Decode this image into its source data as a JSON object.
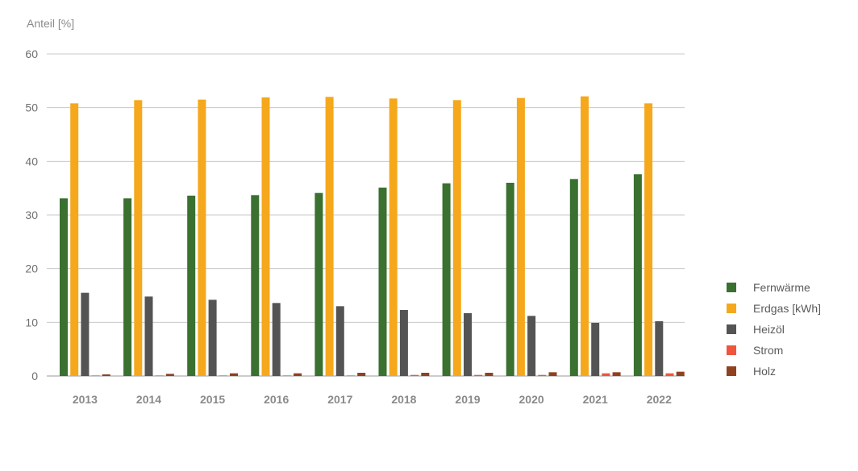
{
  "chart_data": {
    "type": "bar",
    "ylabel": "Anteil [%]",
    "ylim": [
      0,
      60
    ],
    "yticks": [
      0,
      10,
      20,
      30,
      40,
      50,
      60
    ],
    "grid": true,
    "legend_placement": "right",
    "categories": [
      "2013",
      "2014",
      "2015",
      "2016",
      "2017",
      "2018",
      "2019",
      "2020",
      "2021",
      "2022"
    ],
    "series": [
      {
        "name": "Fernwärme",
        "color": "#3a7030",
        "values": [
          33.1,
          33.1,
          33.6,
          33.7,
          34.1,
          35.1,
          35.9,
          36.0,
          36.7,
          37.6
        ]
      },
      {
        "name": "Erdgas [kWh]",
        "color": "#f5a81c",
        "values": [
          50.8,
          51.4,
          51.5,
          51.9,
          52.0,
          51.7,
          51.4,
          51.8,
          52.1,
          50.8
        ]
      },
      {
        "name": "Heizöl",
        "color": "#545454",
        "values": [
          15.5,
          14.8,
          14.2,
          13.6,
          13.0,
          12.3,
          11.7,
          11.2,
          9.9,
          10.2
        ]
      },
      {
        "name": "Strom",
        "color": "#ef553b",
        "values": [
          0.1,
          0.1,
          0.1,
          0.1,
          0.1,
          0.2,
          0.2,
          0.2,
          0.5,
          0.5
        ]
      },
      {
        "name": "Holz",
        "color": "#8e4220",
        "values": [
          0.3,
          0.4,
          0.5,
          0.5,
          0.6,
          0.6,
          0.6,
          0.7,
          0.7,
          0.8
        ]
      }
    ]
  }
}
